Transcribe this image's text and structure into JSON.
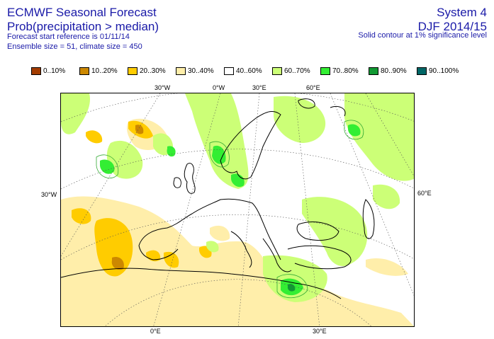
{
  "header": {
    "title": "ECMWF Seasonal Forecast",
    "subtitle": "Prob(precipitation > median)",
    "start_ref": "Forecast start reference is 01/11/14",
    "ensemble": "Ensemble size = 51, climate size = 450",
    "system": "System 4",
    "period": "DJF 2014/15",
    "contour_note": "Solid contour at 1% significance level"
  },
  "legend": [
    {
      "label": "0..10%",
      "color": "#a33c00"
    },
    {
      "label": "10..20%",
      "color": "#cc8800"
    },
    {
      "label": "20..30%",
      "color": "#ffcc00"
    },
    {
      "label": "30..40%",
      "color": "#ffeeaa"
    },
    {
      "label": "40..60%",
      "color": "#ffffff"
    },
    {
      "label": "60..70%",
      "color": "#ccff77"
    },
    {
      "label": "70..80%",
      "color": "#33ee33"
    },
    {
      "label": "80..90%",
      "color": "#119933"
    },
    {
      "label": "90..100%",
      "color": "#006666"
    }
  ],
  "labels": {
    "top_30w": "30°W",
    "top_0w": "0°W",
    "top_30e": "30°E",
    "top_60e": "60°E",
    "left_30w": "30°W",
    "right_60e": "60°E",
    "bottom_0e": "0°E",
    "bottom_30e": "30°E"
  }
}
